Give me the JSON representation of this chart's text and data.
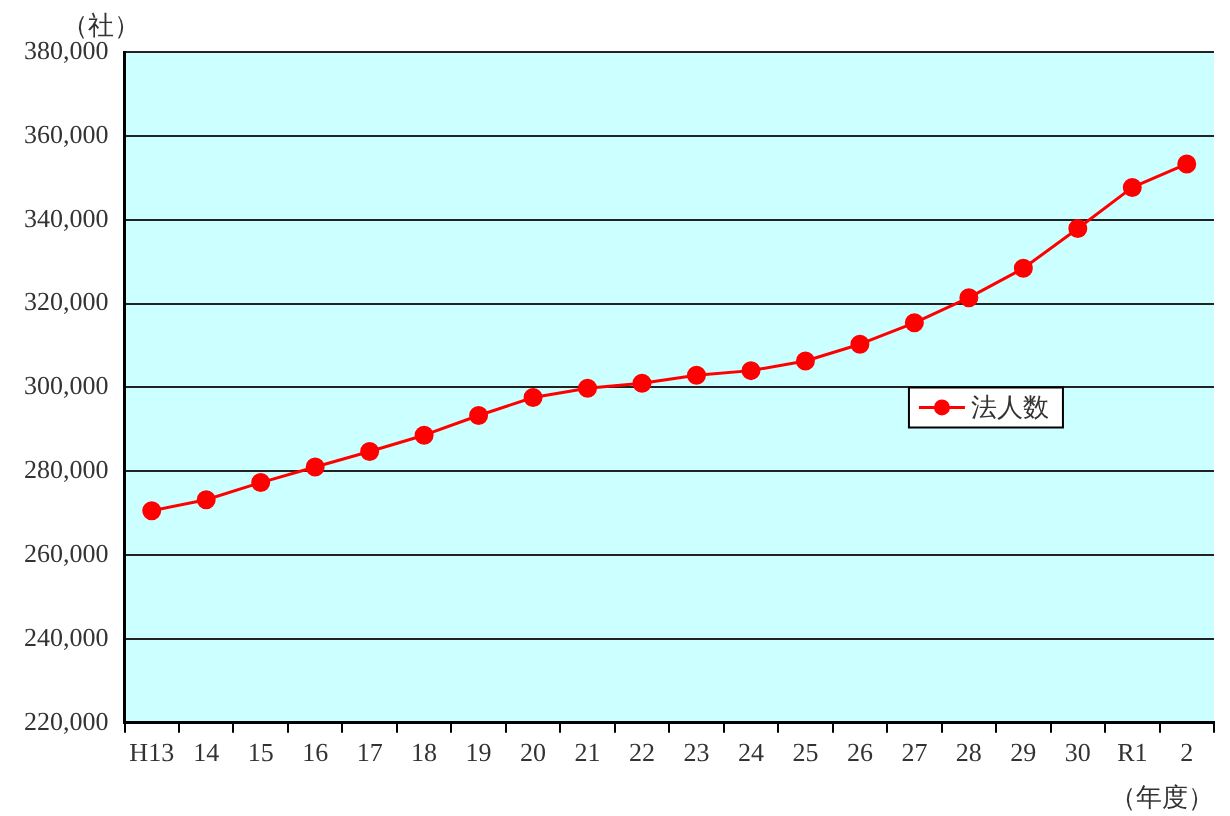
{
  "chart_data": {
    "type": "line",
    "ylabel": "（社）",
    "xlabel": "（年度）",
    "categories": [
      "H13",
      "14",
      "15",
      "16",
      "17",
      "18",
      "19",
      "20",
      "21",
      "22",
      "23",
      "24",
      "25",
      "26",
      "27",
      "28",
      "29",
      "30",
      "R1",
      "2"
    ],
    "series": [
      {
        "name": "法人数",
        "color": "#ff0000",
        "values": [
          270600,
          273200,
          277300,
          281000,
          284700,
          288600,
          293300,
          297600,
          299800,
          301000,
          302900,
          304000,
          306300,
          310300,
          315400,
          321400,
          328400,
          337900,
          347700,
          353300
        ]
      }
    ],
    "ylim": [
      220000,
      380000
    ],
    "yticks": [
      {
        "value": 220000,
        "label": "220,000"
      },
      {
        "value": 240000,
        "label": "240,000"
      },
      {
        "value": 260000,
        "label": "260,000"
      },
      {
        "value": 280000,
        "label": "280,000"
      },
      {
        "value": 300000,
        "label": "300,000"
      },
      {
        "value": 320000,
        "label": "320,000"
      },
      {
        "value": 340000,
        "label": "340,000"
      },
      {
        "value": 360000,
        "label": "360,000"
      },
      {
        "value": 380000,
        "label": "380,000"
      }
    ],
    "grid": "y",
    "legend": "right",
    "marker": "circle",
    "line_style": "solid"
  }
}
